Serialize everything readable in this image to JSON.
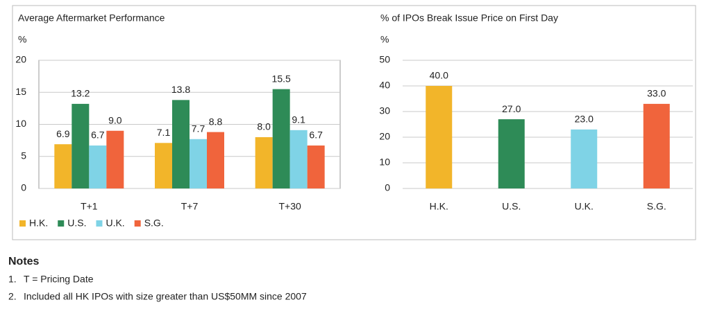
{
  "chart_data": [
    {
      "type": "bar",
      "title": "Average Aftermarket Performance",
      "ylabel": "%",
      "categories": [
        "T+1",
        "T+7",
        "T+30"
      ],
      "series": [
        {
          "name": "H.K.",
          "color": "#f2b52a",
          "values": [
            6.9,
            7.1,
            8.0
          ],
          "value_labels": [
            "6.9",
            "7.1",
            "8.0"
          ]
        },
        {
          "name": "U.S.",
          "color": "#2e8b57",
          "values": [
            13.2,
            13.8,
            15.5
          ],
          "value_labels": [
            "13.2",
            "13.8",
            "15.5"
          ]
        },
        {
          "name": "U.K.",
          "color": "#7fd3e6",
          "values": [
            6.7,
            7.7,
            9.1
          ],
          "value_labels": [
            "6.7",
            "7.7",
            "9.1"
          ]
        },
        {
          "name": "S.G.",
          "color": "#f0643c",
          "values": [
            9.0,
            8.8,
            6.7
          ],
          "value_labels": [
            "9.0",
            "8.8",
            "6.7"
          ]
        }
      ],
      "ylim": [
        0,
        20
      ],
      "yticks": [
        0,
        5,
        10,
        15,
        20
      ],
      "grid": true,
      "legend": "bottom-left"
    },
    {
      "type": "bar",
      "title": "% of IPOs  Break Issue Price on First Day",
      "ylabel": "%",
      "categories": [
        "H.K.",
        "U.S.",
        "U.K.",
        "S.G."
      ],
      "values": [
        40,
        27,
        23,
        33
      ],
      "value_labels": [
        "40.0",
        "27.0",
        "23.0",
        "33.0"
      ],
      "colors": [
        "#f2b52a",
        "#2e8b57",
        "#7fd3e6",
        "#f0643c"
      ],
      "ylim": [
        0,
        50
      ],
      "yticks": [
        0,
        10,
        20,
        30,
        40,
        50
      ],
      "grid": true
    }
  ],
  "notes": {
    "title": "Notes",
    "items": [
      {
        "number": "1.",
        "text": "T = Pricing Date"
      },
      {
        "number": "2.",
        "text": "Included all HK IPOs with size greater than US$50MM since 2007"
      }
    ]
  }
}
